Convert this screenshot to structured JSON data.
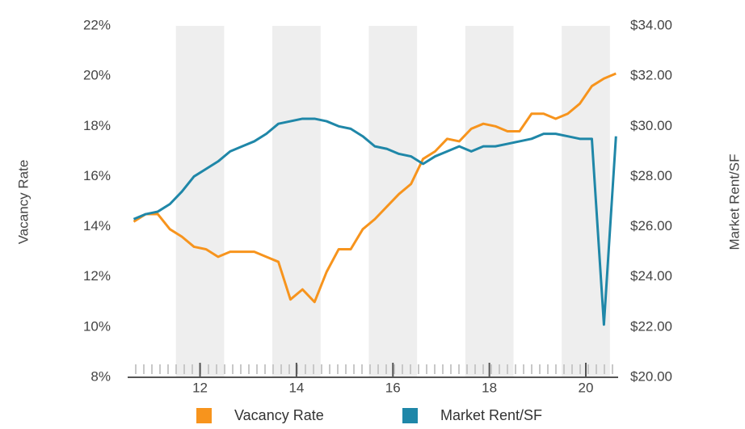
{
  "chart_data": {
    "type": "line",
    "ylabel": "Vacancy Rate",
    "y2label": "Market Rent/SF",
    "x": [
      10.625,
      10.875,
      11.125,
      11.375,
      11.625,
      11.875,
      12.125,
      12.375,
      12.625,
      12.875,
      13.125,
      13.375,
      13.625,
      13.875,
      14.125,
      14.375,
      14.625,
      14.875,
      15.125,
      15.375,
      15.625,
      15.875,
      16.125,
      16.375,
      16.625,
      16.875,
      17.125,
      17.375,
      17.625,
      17.875,
      18.125,
      18.375,
      18.625,
      18.875,
      19.125,
      19.375,
      19.625,
      19.875,
      20.125,
      20.375,
      20.625
    ],
    "series": [
      {
        "name": "Vacancy Rate",
        "color": "#f7941d",
        "axis": "y",
        "values": [
          14.2,
          14.5,
          14.5,
          13.9,
          13.6,
          13.2,
          13.1,
          12.8,
          13.0,
          13.0,
          13.0,
          12.8,
          12.6,
          11.1,
          11.5,
          11.0,
          12.2,
          13.1,
          13.1,
          13.9,
          14.3,
          14.8,
          15.3,
          15.7,
          16.7,
          17.0,
          17.5,
          17.4,
          17.9,
          18.1,
          18.0,
          17.8,
          17.8,
          18.5,
          18.5,
          18.3,
          18.5,
          18.9,
          19.6,
          19.9,
          20.1
        ]
      },
      {
        "name": "Market Rent/SF",
        "color": "#1f87a8",
        "axis": "y2",
        "values": [
          26.3,
          26.5,
          26.6,
          26.9,
          27.4,
          28.0,
          28.3,
          28.6,
          29.0,
          29.2,
          29.4,
          29.7,
          30.1,
          30.2,
          30.3,
          30.3,
          30.2,
          30.0,
          29.9,
          29.6,
          29.2,
          29.1,
          28.9,
          28.8,
          28.5,
          28.8,
          29.0,
          29.2,
          29.0,
          29.2,
          29.2,
          29.3,
          29.4,
          29.5,
          29.7,
          29.7,
          29.6,
          29.5,
          29.5,
          22.1,
          29.6
        ]
      }
    ],
    "xlim": [
      10.5,
      20.67
    ],
    "xticks": [
      12,
      14,
      16,
      18,
      20
    ],
    "ylim": [
      8,
      22
    ],
    "yticks": [
      {
        "value": 8,
        "label": "8%"
      },
      {
        "value": 10,
        "label": "10%"
      },
      {
        "value": 12,
        "label": "12%"
      },
      {
        "value": 14,
        "label": "14%"
      },
      {
        "value": 16,
        "label": "16%"
      },
      {
        "value": 18,
        "label": "18%"
      },
      {
        "value": 20,
        "label": "20%"
      },
      {
        "value": 22,
        "label": "22%"
      }
    ],
    "y2lim": [
      20,
      34
    ],
    "y2ticks": [
      {
        "value": 20,
        "label": "$20.00"
      },
      {
        "value": 22,
        "label": "$22.00"
      },
      {
        "value": 24,
        "label": "$24.00"
      },
      {
        "value": 26,
        "label": "$26.00"
      },
      {
        "value": 28,
        "label": "$28.00"
      },
      {
        "value": 30,
        "label": "$30.00"
      },
      {
        "value": 32,
        "label": "$32.00"
      },
      {
        "value": 34,
        "label": "$34.00"
      }
    ],
    "legend": "bottom"
  }
}
